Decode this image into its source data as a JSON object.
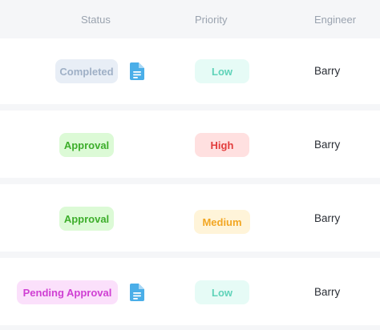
{
  "header": {
    "status": "Status",
    "priority": "Priority",
    "engineer": "Engineer"
  },
  "rows": [
    {
      "status": "Completed",
      "priority": "Low",
      "engineer": "Barry",
      "has_document": true,
      "document_icon": "document-icon",
      "status_color": {
        "bg": "#e8eef6",
        "fg": "#9fb0c6"
      },
      "priority_color": {
        "bg": "#e6fbf6",
        "fg": "#5fd3b9"
      }
    },
    {
      "status": "Approval",
      "priority": "High",
      "engineer": "Barry",
      "has_document": false,
      "status_color": {
        "bg": "#dcfad6",
        "fg": "#3dae2b"
      },
      "priority_color": {
        "bg": "#ffe0e0",
        "fg": "#e23d3d"
      }
    },
    {
      "status": "Approval",
      "priority": "Medium",
      "engineer": "Barry",
      "has_document": false,
      "status_color": {
        "bg": "#dcfad6",
        "fg": "#3dae2b"
      },
      "priority_color": {
        "bg": "#fff4d9",
        "fg": "#f2a623"
      }
    },
    {
      "status": "Pending Approval",
      "priority": "Low",
      "engineer": "Barry",
      "has_document": true,
      "document_icon": "document-icon",
      "status_color": {
        "bg": "#fbe0fb",
        "fg": "#cf3fd3"
      },
      "priority_color": {
        "bg": "#e6fbf6",
        "fg": "#5fd3b9"
      }
    }
  ],
  "colors": {
    "document_icon": "#4aaee8",
    "background": "#f5f6f8",
    "row": "#ffffff",
    "header_text": "#9aa3af",
    "body_text": "#2b2f36"
  }
}
